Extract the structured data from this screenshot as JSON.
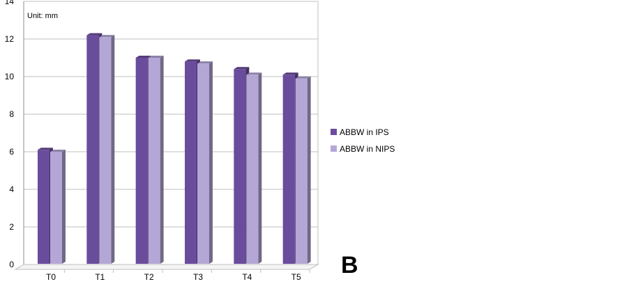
{
  "chart_data": {
    "type": "bar",
    "unit_label": "Unit: mm",
    "panel_letter": "B",
    "categories": [
      "T0",
      "T1",
      "T2",
      "T3",
      "T4",
      "T5"
    ],
    "series": [
      {
        "name": "ABBW in IPS",
        "values": [
          6.1,
          12.2,
          11.0,
          10.8,
          10.4,
          10.1
        ],
        "color": "#6a4c9c"
      },
      {
        "name": "ABBW in NIPS",
        "values": [
          6.0,
          12.1,
          11.0,
          10.7,
          10.1,
          9.9
        ],
        "color": "#b4a7d6"
      }
    ],
    "ylim": [
      0,
      14
    ],
    "yticks": [
      "0",
      "2",
      "4",
      "6",
      "8",
      "10",
      "12",
      "14"
    ],
    "grid": true,
    "legend_position": "right",
    "three_d": true
  }
}
